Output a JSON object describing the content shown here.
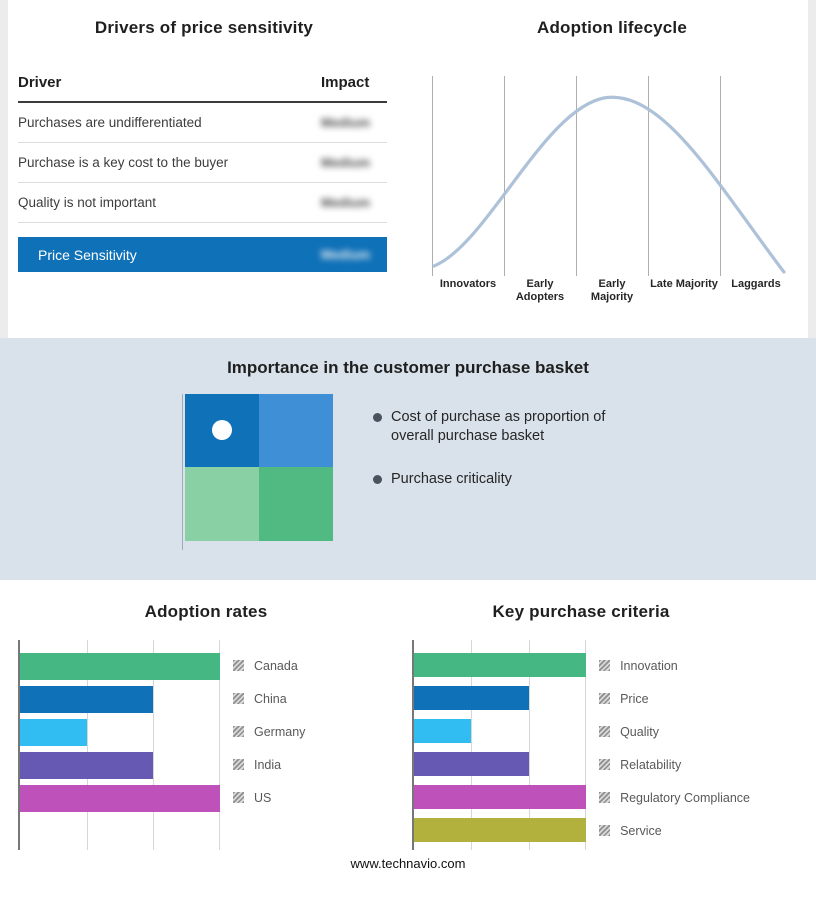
{
  "page": {
    "footer": "www.technavio.com"
  },
  "drivers_panel": {
    "title": "Drivers of price sensitivity",
    "col_driver": "Driver",
    "col_impact": "Impact",
    "rows": [
      {
        "driver": "Purchases are undifferentiated",
        "impact": "Medium"
      },
      {
        "driver": "Purchase is a key cost to the buyer",
        "impact": "Medium"
      },
      {
        "driver": "Quality is not important",
        "impact": "Medium"
      }
    ],
    "summary": {
      "label": "Price Sensitivity",
      "impact": "Medium",
      "bar_color": "#0f71b8"
    }
  },
  "lifecycle_panel": {
    "title": "Adoption lifecycle",
    "stages": [
      "Innovators",
      "Early Adopters",
      "Early Majority",
      "Late Majority",
      "Laggards"
    ],
    "curve_color": "#adc2d8"
  },
  "basket_band": {
    "title": "Importance in the customer purchase basket",
    "band_color": "#d9e1ea",
    "quadrant_colors": {
      "top_left": "#0f71b8",
      "top_right": "#3e8fd6",
      "bottom_left": "#8ad0a5",
      "bottom_right": "#50ba82"
    },
    "bullets": [
      "Cost of purchase as proportion of overall purchase basket",
      "Purchase criticality"
    ]
  },
  "chart_data": [
    {
      "type": "bar",
      "orientation": "horizontal",
      "title": "Adoption rates",
      "categories": [
        "Canada",
        "China",
        "Germany",
        "India",
        "US"
      ],
      "values": [
        3,
        2,
        1,
        2,
        3
      ],
      "xlim": [
        0,
        3
      ],
      "grid": true,
      "legend_position": "right",
      "colors": [
        "#45b783",
        "#0f71b8",
        "#31bdf2",
        "#6659b4",
        "#bf52ba"
      ]
    },
    {
      "type": "bar",
      "orientation": "horizontal",
      "title": "Key purchase criteria",
      "categories": [
        "Innovation",
        "Price",
        "Quality",
        "Relatability",
        "Regulatory Compliance",
        "Service"
      ],
      "values": [
        3,
        2,
        1,
        2,
        3,
        3
      ],
      "xlim": [
        0,
        3
      ],
      "grid": true,
      "legend_position": "right",
      "colors": [
        "#45b783",
        "#0f71b8",
        "#31bdf2",
        "#6659b4",
        "#bf52ba",
        "#b2b13d"
      ]
    }
  ]
}
